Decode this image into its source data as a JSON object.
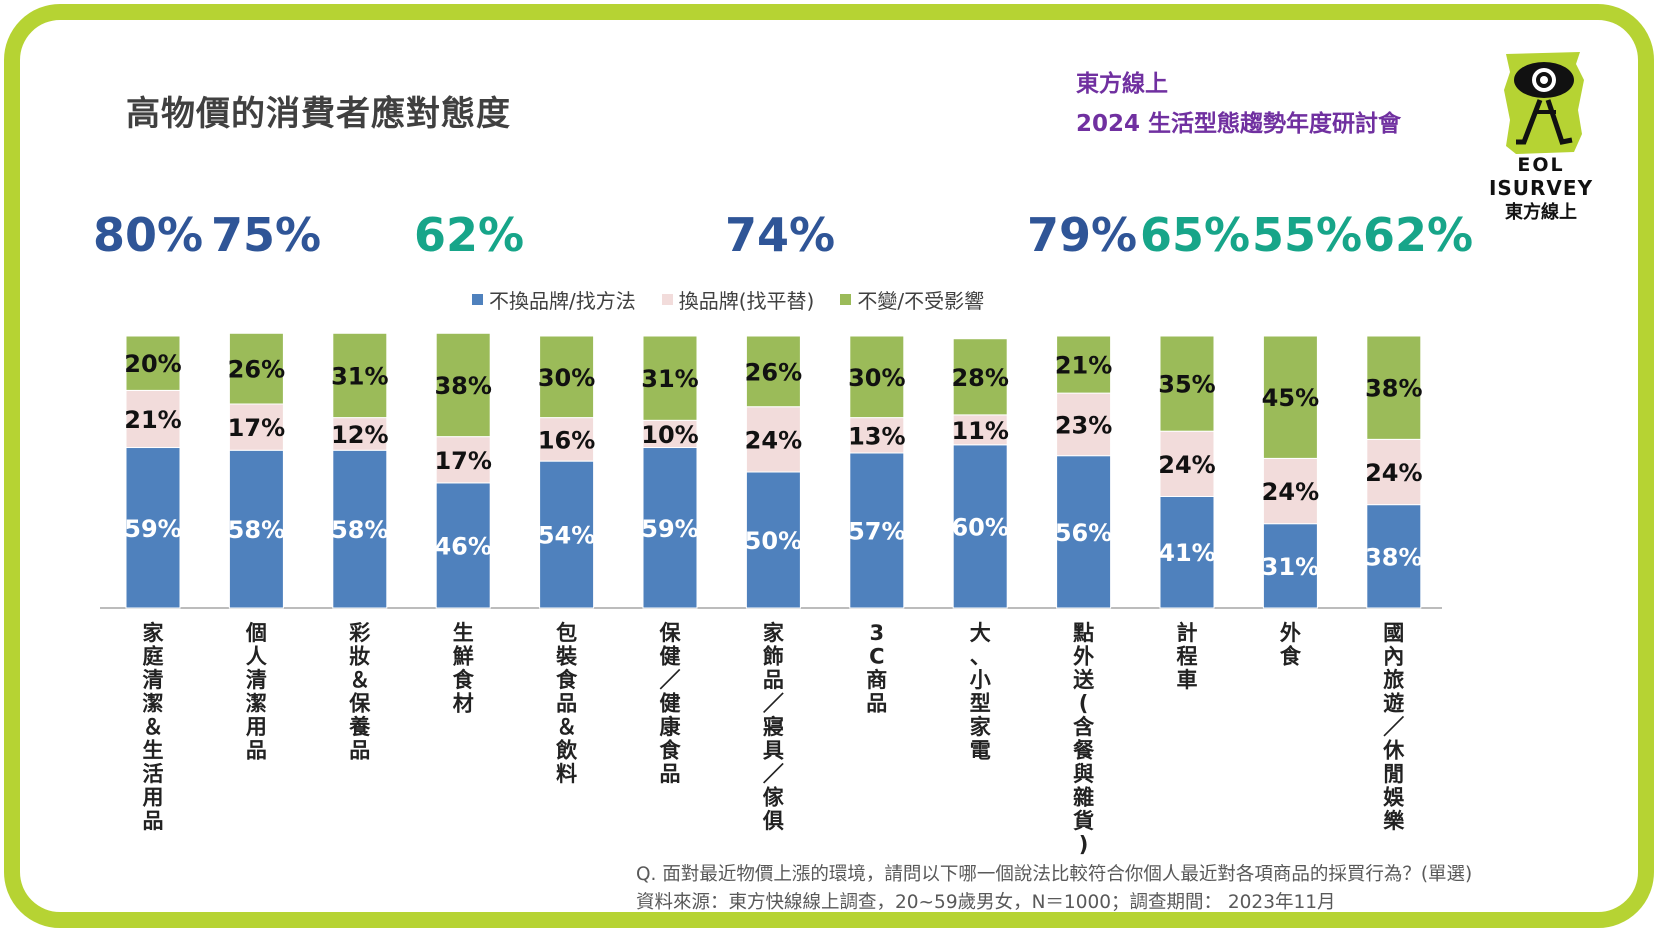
{
  "title": "高物價的消費者應對態度",
  "org": {
    "line1": "東方線上",
    "line2": "2024 生活型態趨勢年度研討會"
  },
  "logo": {
    "line1": "EOL",
    "line2": "ISURVEY",
    "line3": "東方線上",
    "icon": "eye-figure-logo"
  },
  "highlights": [
    {
      "text": "80%",
      "color": "#2f5597"
    },
    {
      "text": "75%",
      "color": "#2f5597"
    },
    {
      "text": "62%",
      "color": "#17a589"
    },
    {
      "text": "74%",
      "color": "#2f5597"
    },
    {
      "text": "79%",
      "color": "#2f5597"
    },
    {
      "text": "65%",
      "color": "#17a589"
    },
    {
      "text": "55%",
      "color": "#17a589"
    },
    {
      "text": "62%",
      "color": "#17a589"
    }
  ],
  "chart_data": {
    "type": "bar",
    "stacked": true,
    "orientation": "vertical",
    "categories": [
      "家庭清潔＆生活用品",
      "個人清潔用品",
      "彩妝＆保養品",
      "生鮮食材",
      "包裝食品＆飲料",
      "保健／健康食品",
      "家飾品／寢具／傢俱",
      "3C商品",
      "大、小型家電",
      "點外送(含餐與雜貨)",
      "計程車",
      "外食",
      "國內旅遊／休閒娛樂"
    ],
    "series": [
      {
        "name": "不換品牌/找方法",
        "color": "#4f81bd",
        "values": [
          59,
          58,
          58,
          46,
          54,
          59,
          50,
          57,
          60,
          56,
          41,
          31,
          38
        ]
      },
      {
        "name": "換品牌(找平替)",
        "color": "#f2dcdb",
        "values": [
          21,
          17,
          12,
          17,
          16,
          10,
          24,
          13,
          11,
          23,
          24,
          24,
          24
        ]
      },
      {
        "name": "不變/不受影響",
        "color": "#9bbb59",
        "values": [
          20,
          26,
          31,
          38,
          30,
          31,
          26,
          30,
          28,
          21,
          35,
          45,
          38
        ]
      }
    ],
    "value_suffix": "%",
    "ylim": [
      0,
      100
    ],
    "legend_position": "top",
    "grid": false
  },
  "footnote": {
    "question": "Q. 面對最近物價上漲的環境，請問以下哪一個說法比較符合你個人最近對各項商品的採買行為？(單選)",
    "source": "資料來源：東方快線線上調查，20~59歲男女，N＝1000；調查期間： 2023年11月"
  }
}
